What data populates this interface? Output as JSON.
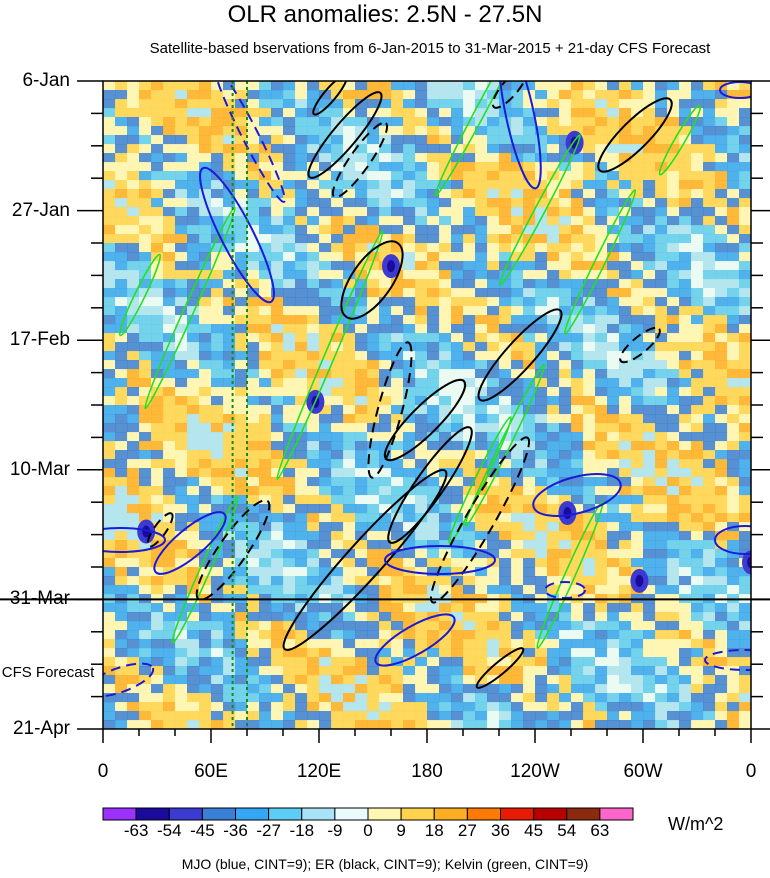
{
  "chart_data": {
    "type": "heatmap",
    "title": "OLR anomalies: 2.5N - 27.5N",
    "subtitle": "Satellite-based bservations from 6-Jan-2015 to 31-Mar-2015 + 21-day CFS Forecast",
    "y_axis": {
      "orientation": "time increasing downward",
      "range": [
        "6-Jan-2015",
        "21-Apr-2015"
      ],
      "ticks": [
        "6-Jan",
        "27-Jan",
        "17-Feb",
        "10-Mar",
        "31-Mar",
        "21-Apr"
      ],
      "forecast_start": "31-Mar",
      "forecast_label": "CFS Forecast"
    },
    "x_axis": {
      "range_deg_east": [
        0,
        360
      ],
      "ticks": [
        "0",
        "60E",
        "120E",
        "180",
        "120W",
        "60W",
        "0"
      ]
    },
    "colorbar": {
      "units": "W/m^2",
      "levels": [
        "-63",
        "-54",
        "-45",
        "-36",
        "-27",
        "-18",
        "-9",
        "0",
        "9",
        "18",
        "27",
        "36",
        "45",
        "54",
        "63"
      ],
      "colors": [
        "#9b30ff",
        "#1c0a9c",
        "#3b3bd1",
        "#3a7fd6",
        "#33a6f5",
        "#5ccdf5",
        "#a8e3f7",
        "#e9fbfb",
        "#fff6b3",
        "#ffd34d",
        "#ffae24",
        "#ff7a00",
        "#e81a00",
        "#b90000",
        "#8c2a10",
        "#ff66cc"
      ]
    },
    "reference_lines": {
      "vertical_dashed_longitudes_E": [
        72,
        80
      ],
      "color": "#168a16"
    },
    "legend": "MJO (blue, CINT=9); ER (black, CINT=9); Kelvin (green, CINT=9)",
    "contour_sets": [
      {
        "name": "MJO",
        "color": "#1a1ad9"
      },
      {
        "name": "ER",
        "color": "#000000"
      },
      {
        "name": "Kelvin",
        "color": "#22e022"
      }
    ]
  }
}
